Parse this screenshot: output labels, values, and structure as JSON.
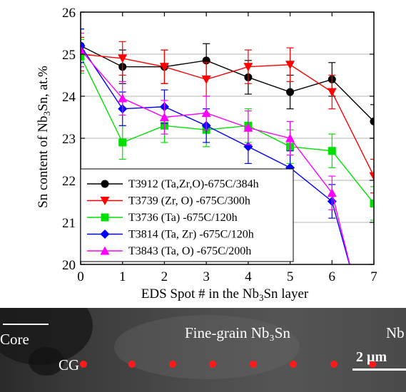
{
  "chart_data": {
    "type": "line",
    "title": "",
    "xlabel_parts": [
      "EDS Spot # in the Nb",
      "3",
      "Sn layer"
    ],
    "ylabel_parts": [
      "Sn content of Nb",
      "3",
      "Sn, at.%"
    ],
    "xlim": [
      0,
      7
    ],
    "ylim": [
      20,
      26
    ],
    "xticks": [
      "0",
      "1",
      "2",
      "3",
      "4",
      "5",
      "6",
      "7"
    ],
    "yticks": [
      "20",
      "21",
      "22",
      "23",
      "24",
      "25",
      "26"
    ],
    "grid": "horizontal",
    "legend_position": "lower-left",
    "series": [
      {
        "name": "T3912 (Ta,Zr,O)-675C/384h",
        "color": "#000000",
        "marker": "circle",
        "x": [
          0,
          1,
          2,
          3,
          4,
          5,
          6,
          7
        ],
        "y": [
          25.2,
          24.7,
          24.7,
          24.85,
          24.45,
          24.1,
          24.4,
          23.4
        ],
        "err": [
          0.4,
          0.4,
          0.4,
          0.4,
          0.4,
          0.4,
          0.4,
          0.4
        ]
      },
      {
        "name": "T3739 (Zr, O) -675C/300h",
        "color": "#ff0000",
        "marker": "triangle-down",
        "x": [
          0,
          1,
          2,
          3,
          4,
          5,
          6,
          7
        ],
        "y": [
          25.0,
          24.9,
          24.7,
          24.4,
          24.7,
          24.75,
          24.1,
          22.1
        ],
        "err": [
          0.4,
          0.4,
          0.4,
          0.4,
          0.4,
          0.4,
          0.4,
          0.4
        ]
      },
      {
        "name": "T3736 (Ta) -675C/120h",
        "color": "#00e000",
        "marker": "square",
        "x": [
          0,
          1,
          2,
          3,
          4,
          5,
          6,
          7
        ],
        "y": [
          24.95,
          22.9,
          23.3,
          23.2,
          23.3,
          22.8,
          22.7,
          21.45
        ],
        "err": [
          0.4,
          0.4,
          0.4,
          0.4,
          0.4,
          0.4,
          0.4,
          0.4
        ]
      },
      {
        "name": "T3814 (Ta, Zr) -675C/120h",
        "color": "#0000ff",
        "marker": "diamond",
        "x": [
          0,
          1,
          2,
          3,
          4,
          5,
          6,
          6.5
        ],
        "y": [
          25.2,
          23.7,
          23.75,
          23.3,
          22.8,
          22.3,
          21.5,
          19.7
        ],
        "err": [
          0.4,
          0.4,
          0.4,
          0.4,
          0.4,
          0.4,
          0.4,
          null
        ]
      },
      {
        "name": "T3843 (Ta, O) -675C/200h",
        "color": "#ff00ff",
        "marker": "triangle-up",
        "x": [
          0,
          1,
          2,
          3,
          4,
          5,
          6,
          6.5
        ],
        "y": [
          25.1,
          23.95,
          23.5,
          23.6,
          23.25,
          23.0,
          21.7,
          19.7
        ],
        "err": [
          0.4,
          0.4,
          0.4,
          0.4,
          0.4,
          0.4,
          0.4,
          null
        ]
      }
    ]
  },
  "micrograph": {
    "label_core": "Core",
    "label_fine_grain": "Fine-grain Nb₃Sn",
    "label_right_cut": "Nb",
    "label_cg": "CG",
    "scale_bar_label": "2 µm",
    "spot_color": "#ff1a1a",
    "spot_count": 8
  }
}
